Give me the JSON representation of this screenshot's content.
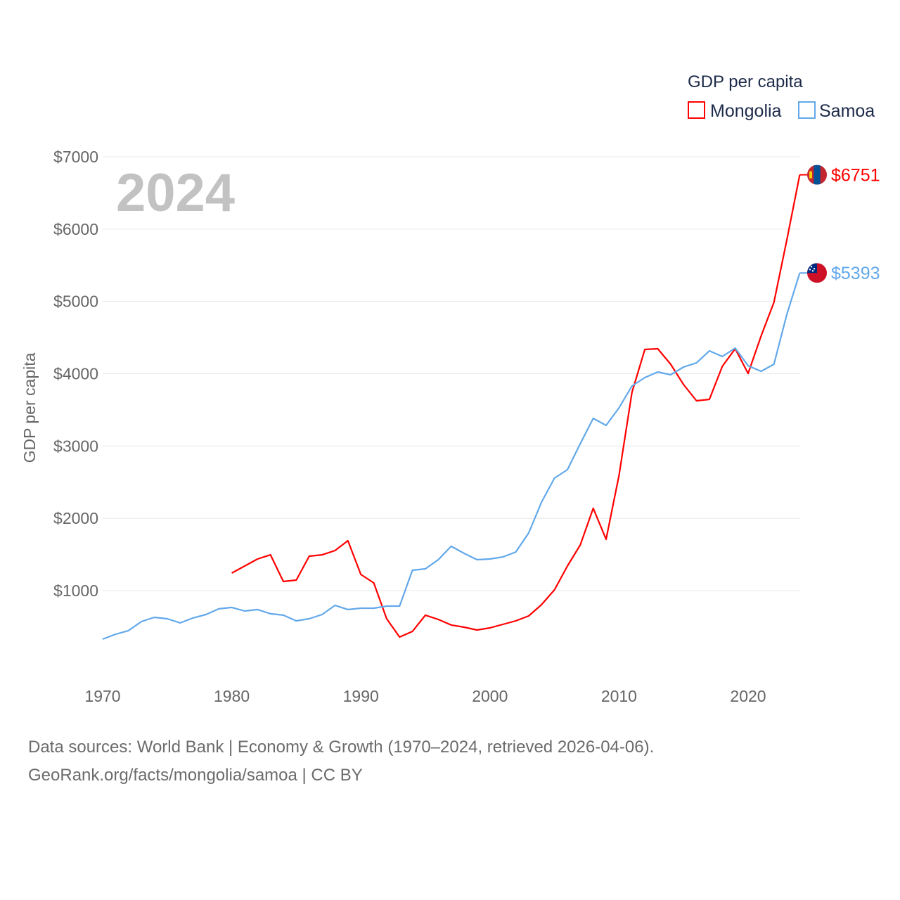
{
  "chart_data": {
    "type": "line",
    "title": "GDP per capita",
    "xlabel": "",
    "ylabel": "GDP per capita",
    "current_year_label": "2024",
    "xlim": [
      1970,
      2024
    ],
    "ylim": [
      0,
      7200
    ],
    "grid": true,
    "legend": {
      "title": "GDP per capita",
      "placement": "top-right"
    },
    "x_ticks": [
      1970,
      1980,
      1990,
      2000,
      2010,
      2020
    ],
    "y_ticks": [
      1000,
      2000,
      3000,
      4000,
      5000,
      6000,
      7000
    ],
    "y_tick_labels": [
      "$1000",
      "$2000",
      "$3000",
      "$4000",
      "$5000",
      "$6000",
      "$7000"
    ],
    "series": [
      {
        "name": "Mongolia",
        "color": "#ff0000",
        "end_label": "$6751",
        "flag": "mongolia-flag",
        "x": [
          1980,
          1981,
          1982,
          1983,
          1984,
          1985,
          1986,
          1987,
          1988,
          1989,
          1990,
          1991,
          1992,
          1993,
          1994,
          1995,
          1996,
          1997,
          1998,
          1999,
          2000,
          2001,
          2002,
          2003,
          2004,
          2005,
          2006,
          2007,
          2008,
          2009,
          2010,
          2011,
          2012,
          2013,
          2014,
          2015,
          2016,
          2017,
          2018,
          2019,
          2020,
          2021,
          2022,
          2023,
          2024
        ],
        "values": [
          1243,
          1340,
          1437,
          1495,
          1126,
          1146,
          1476,
          1495,
          1554,
          1690,
          1223,
          1107,
          611,
          358,
          436,
          660,
          601,
          524,
          494,
          455,
          484,
          533,
          582,
          650,
          806,
          1010,
          1340,
          1632,
          2138,
          1710,
          2595,
          3742,
          4335,
          4345,
          4131,
          3849,
          3625,
          3645,
          4102,
          4345,
          4004,
          4520,
          4987,
          5852,
          6751
        ]
      },
      {
        "name": "Samoa",
        "color": "#62a8ea",
        "end_label": "$5393",
        "flag": "samoa-flag",
        "x": [
          1970,
          1971,
          1972,
          1973,
          1974,
          1975,
          1976,
          1977,
          1978,
          1979,
          1980,
          1981,
          1982,
          1983,
          1984,
          1985,
          1986,
          1987,
          1988,
          1989,
          1990,
          1991,
          1992,
          1993,
          1994,
          1995,
          1996,
          1997,
          1998,
          1999,
          2000,
          2001,
          2002,
          2003,
          2004,
          2005,
          2006,
          2007,
          2008,
          2009,
          2010,
          2011,
          2012,
          2013,
          2014,
          2015,
          2016,
          2017,
          2018,
          2019,
          2020,
          2021,
          2022,
          2023,
          2024
        ],
        "values": [
          329,
          397,
          446,
          572,
          630,
          611,
          553,
          621,
          669,
          748,
          767,
          718,
          738,
          680,
          660,
          582,
          611,
          669,
          796,
          738,
          757,
          757,
          786,
          786,
          1282,
          1301,
          1428,
          1613,
          1515,
          1428,
          1437,
          1466,
          1534,
          1797,
          2225,
          2556,
          2672,
          3032,
          3382,
          3285,
          3528,
          3830,
          3946,
          4024,
          3985,
          4092,
          4150,
          4316,
          4238,
          4354,
          4111,
          4033,
          4131,
          4822,
          5393
        ]
      }
    ]
  },
  "footer": {
    "line1": "Data sources: World Bank | Economy & Growth (1970–2024, retrieved 2026-04-06).",
    "line2": "GeoRank.org/facts/mongolia/samoa | CC BY"
  }
}
